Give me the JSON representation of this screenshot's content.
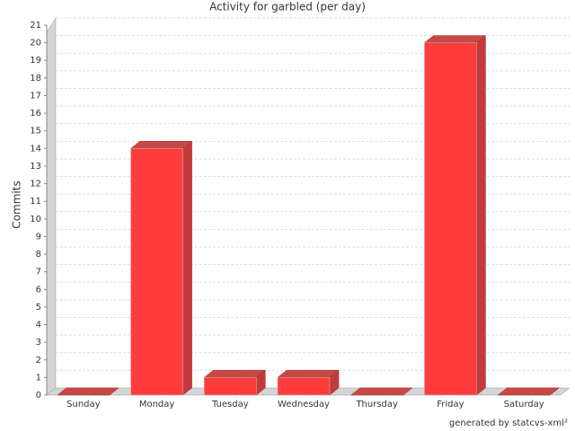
{
  "chart_data": {
    "type": "bar3d",
    "title": "Activity for garbled (per day)",
    "y_label": "Commits",
    "categories": [
      "Sunday",
      "Monday",
      "Tuesday",
      "Wednesday",
      "Thursday",
      "Friday",
      "Saturday"
    ],
    "values": [
      0,
      14,
      1,
      1,
      0,
      20,
      0
    ],
    "color": "#ff3c3c",
    "ylim": [
      0,
      21
    ],
    "yticks": [
      0,
      1,
      2,
      3,
      4,
      5,
      6,
      7,
      8,
      9,
      10,
      11,
      12,
      13,
      14,
      15,
      16,
      17,
      18,
      19,
      20,
      21
    ],
    "grid": true,
    "footer": "generated by statcvs-xml²"
  }
}
